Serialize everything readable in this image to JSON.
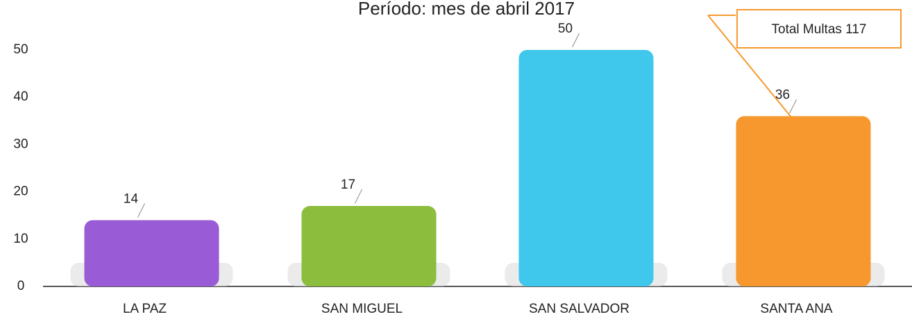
{
  "chart_data": {
    "type": "bar",
    "title": "Período: mes de abril 2017",
    "categories": [
      "LA PAZ",
      "SAN MIGUEL",
      "SAN SALVADOR",
      "SANTA ANA"
    ],
    "values": [
      14,
      17,
      50,
      36
    ],
    "colors": [
      "#9a5bd6",
      "#8cbd3c",
      "#3fc8ec",
      "#f7982e"
    ],
    "ylim": [
      0,
      50
    ],
    "yticks": [
      0,
      10,
      20,
      30,
      40,
      50
    ],
    "annotation": "Total Multas 117"
  }
}
